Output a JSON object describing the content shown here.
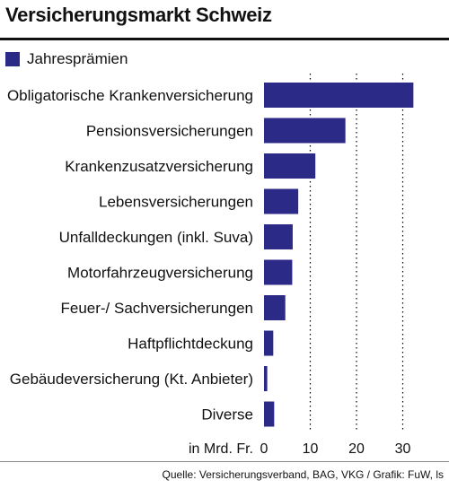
{
  "header": {
    "title": "Versicherungsmarkt Schweiz"
  },
  "source": "Quelle: Versicherungsverband, BAG, VKG / Grafik: FuW, ls",
  "colors": {
    "bar": "#2b2a86",
    "grid": "#000000",
    "text": "#111111"
  },
  "chart_data": {
    "type": "bar",
    "orientation": "horizontal",
    "categories": [
      "Obligatorische Krankenversicherung",
      "Pensionsversicherungen",
      "Krankenzusatzversicherung",
      "Lebensversicherungen",
      "Unfalldeckungen (inkl. Suva)",
      "Motorfahrzeugversicherung",
      "Feuer-/ Sachversicherungen",
      "Haftpflichtdeckung",
      "Gebäudeversicherung (Kt. Anbieter)",
      "Diverse"
    ],
    "series": [
      {
        "name": "Jahresprämien",
        "values": [
          32.3,
          17.6,
          11.1,
          7.4,
          6.2,
          6.1,
          4.6,
          2.0,
          0.7,
          2.2
        ]
      }
    ],
    "xlabel": "in Mrd. Fr.",
    "xticks": [
      0,
      10,
      20,
      30
    ],
    "xlim": [
      0,
      36
    ],
    "grid": "vertical dotted",
    "legend": "top-left"
  }
}
